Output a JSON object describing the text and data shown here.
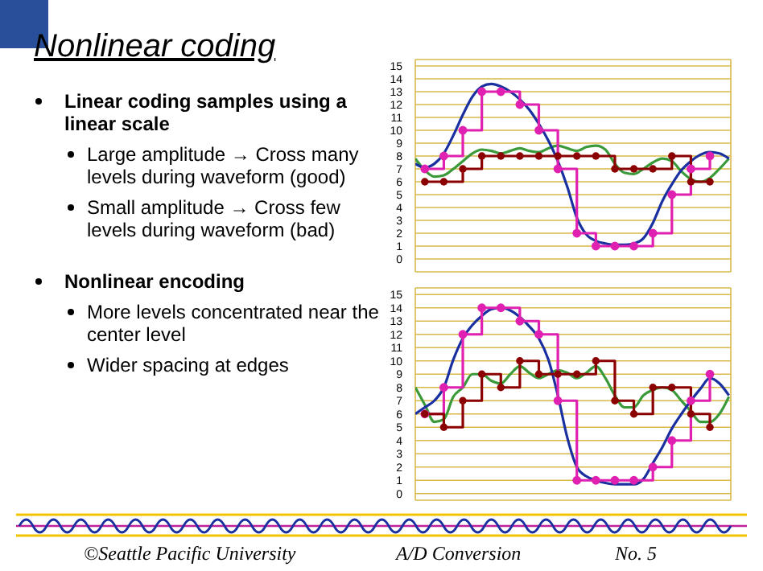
{
  "chart_data": [
    {
      "type": "other",
      "title": "Nonlinear coding",
      "annotations": [
        "Linear coding samples using a linear scale",
        "Large amplitude → Cross many levels during waveform (good)",
        "Small amplitude → Cross few levels during waveform (bad)",
        "Nonlinear encoding",
        "More levels concentrated near the center level",
        "Wider spacing at edges",
        "©Seattle Pacific University",
        "A/D Conversion",
        "No. 5"
      ]
    },
    {
      "type": "line",
      "categories": [
        null,
        null,
        null,
        null,
        null,
        null,
        null,
        null,
        null,
        null,
        null,
        null,
        null,
        null,
        null,
        null,
        null,
        null,
        null,
        null,
        null,
        null,
        null,
        null,
        null,
        null,
        null,
        null,
        null,
        null,
        null,
        null,
        null,
        null
      ],
      "ylim": [
        -1,
        15.5
      ],
      "yticks": [
        0,
        1,
        2,
        3,
        4,
        5,
        6,
        7,
        8,
        9,
        10,
        11,
        12,
        13,
        14,
        15
      ],
      "grid": true,
      "tick_labels": "y",
      "series": [
        {
          "type": "line",
          "color": "#3a9a3a",
          "marker": "none",
          "values": [
            7.8,
            6.9,
            6.4,
            6.5,
            7.0,
            7.6,
            8.2,
            8.5,
            8.4,
            8.2,
            8.4,
            8.6,
            8.4,
            8.3,
            8.6,
            8.8,
            8.6,
            8.4,
            8.7,
            8.8,
            8.5,
            7.4,
            6.7,
            6.6,
            7.0,
            7.5,
            7.8,
            7.6,
            6.8,
            6.2,
            6.0,
            6.3,
            7.0,
            7.8
          ]
        },
        {
          "type": "line",
          "color": "#1a2fa0",
          "marker": "none",
          "values": [
            7.4,
            7.1,
            7.4,
            8.2,
            9.6,
            11.2,
            12.6,
            13.4,
            13.6,
            13.4,
            13.0,
            12.4,
            11.6,
            10.5,
            9.2,
            7.6,
            5.6,
            3.2,
            1.9,
            1.4,
            1.2,
            1.1,
            1.1,
            1.2,
            1.6,
            2.8,
            4.5,
            5.8,
            6.9,
            7.6,
            8.1,
            8.3,
            8.2,
            7.8
          ]
        },
        {
          "type": "step",
          "color": "#e020b0",
          "marker": "circle",
          "values": [
            null,
            7,
            null,
            8,
            null,
            10,
            null,
            13,
            null,
            13,
            null,
            12,
            null,
            10,
            null,
            7,
            null,
            2,
            null,
            1,
            null,
            1,
            null,
            1,
            null,
            2,
            null,
            5,
            null,
            7,
            null,
            8,
            null,
            null
          ]
        },
        {
          "type": "step",
          "color": "#8b0000",
          "marker": "circle",
          "values": [
            null,
            6,
            null,
            6,
            null,
            7,
            null,
            8,
            null,
            8,
            null,
            8,
            null,
            8,
            null,
            8,
            null,
            8,
            null,
            8,
            null,
            7,
            null,
            7,
            null,
            7,
            null,
            8,
            null,
            6,
            null,
            6,
            null,
            null
          ]
        }
      ]
    },
    {
      "type": "line",
      "categories": [
        null,
        null,
        null,
        null,
        null,
        null,
        null,
        null,
        null,
        null,
        null,
        null,
        null,
        null,
        null,
        null,
        null,
        null,
        null,
        null,
        null,
        null,
        null,
        null,
        null,
        null,
        null,
        null,
        null,
        null,
        null,
        null,
        null,
        null
      ],
      "ylim": [
        -0.5,
        15.5
      ],
      "yticks": [
        0,
        1,
        2,
        3,
        4,
        5,
        6,
        7,
        8,
        9,
        10,
        11,
        12,
        13,
        14,
        15
      ],
      "grid": true,
      "tick_labels": "y",
      "series": [
        {
          "type": "line",
          "color": "#3a9a3a",
          "marker": "none",
          "values": [
            8,
            6.7,
            5.4,
            5.6,
            7.3,
            8,
            9,
            9,
            8.5,
            8.3,
            9,
            9.6,
            9.1,
            8.7,
            9,
            9.3,
            9.1,
            8.7,
            9.1,
            9.6,
            8.7,
            7.4,
            6.5,
            6.5,
            7.4,
            7.8,
            8,
            7.8,
            7,
            6.2,
            5.4,
            5.4,
            6,
            7.3
          ]
        },
        {
          "type": "line",
          "color": "#1a2fa0",
          "marker": "none",
          "values": [
            6,
            6.5,
            7,
            8,
            10.1,
            11.7,
            12.7,
            13.4,
            13.9,
            14,
            13.8,
            13.3,
            12.6,
            11.7,
            10.1,
            7.4,
            4.2,
            2,
            1.3,
            1,
            0.8,
            0.7,
            0.7,
            0.7,
            1.1,
            2.3,
            3.5,
            4.9,
            6,
            7,
            7.9,
            8.7,
            8.3,
            7.4
          ]
        },
        {
          "type": "step",
          "color": "#e020b0",
          "marker": "circle",
          "values": [
            null,
            6,
            null,
            8,
            null,
            12,
            null,
            14,
            null,
            14,
            null,
            13,
            null,
            12,
            null,
            7,
            null,
            1,
            null,
            1,
            null,
            1,
            null,
            1,
            null,
            2,
            null,
            4,
            null,
            7,
            null,
            9,
            null,
            null
          ]
        },
        {
          "type": "step",
          "color": "#8b0000",
          "marker": "circle",
          "values": [
            null,
            6,
            null,
            5,
            null,
            7,
            null,
            9,
            null,
            8,
            null,
            10,
            null,
            9,
            null,
            9,
            null,
            9,
            null,
            10,
            null,
            7,
            null,
            6,
            null,
            8,
            null,
            8,
            null,
            6,
            null,
            5,
            null,
            null
          ]
        }
      ]
    }
  ]
}
